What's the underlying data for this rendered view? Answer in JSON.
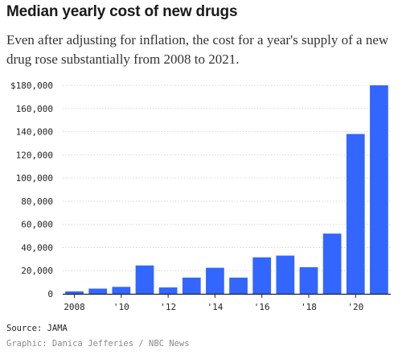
{
  "title": "Median yearly cost of new drugs",
  "subtitle": "Even after adjusting for inflation, the cost for a year's supply of a new drug rose substantially from 2008 to 2021.",
  "source": "Source: JAMA",
  "credit": "Graphic: Danica Jefferies / NBC News",
  "colors": {
    "bar": "#3366ff",
    "grid": "#d9d9d9",
    "axis": "#222222"
  },
  "chart_data": {
    "type": "bar",
    "title": "Median yearly cost of new drugs",
    "xlabel": "",
    "ylabel": "",
    "categories": [
      "2008",
      "2009",
      "2010",
      "2011",
      "2012",
      "2013",
      "2014",
      "2015",
      "2016",
      "2017",
      "2018",
      "2019",
      "2020",
      "2021"
    ],
    "x_tick_labels": [
      "2008",
      "",
      "'10",
      "",
      "'12",
      "",
      "'14",
      "",
      "'16",
      "",
      "'18",
      "",
      "'20",
      ""
    ],
    "values": [
      2100,
      4500,
      6000,
      24500,
      5500,
      14000,
      22500,
      14000,
      31500,
      33000,
      23000,
      52000,
      138000,
      180000
    ],
    "ylim": [
      0,
      180000
    ],
    "y_ticks": [
      0,
      20000,
      40000,
      60000,
      80000,
      100000,
      120000,
      140000,
      160000,
      180000
    ],
    "y_tick_labels": [
      "0",
      "20,000",
      "40,000",
      "60,000",
      "80,000",
      "100,000",
      "120,000",
      "140,000",
      "160,000",
      "$180,000"
    ],
    "grid": true,
    "legend": "none"
  }
}
